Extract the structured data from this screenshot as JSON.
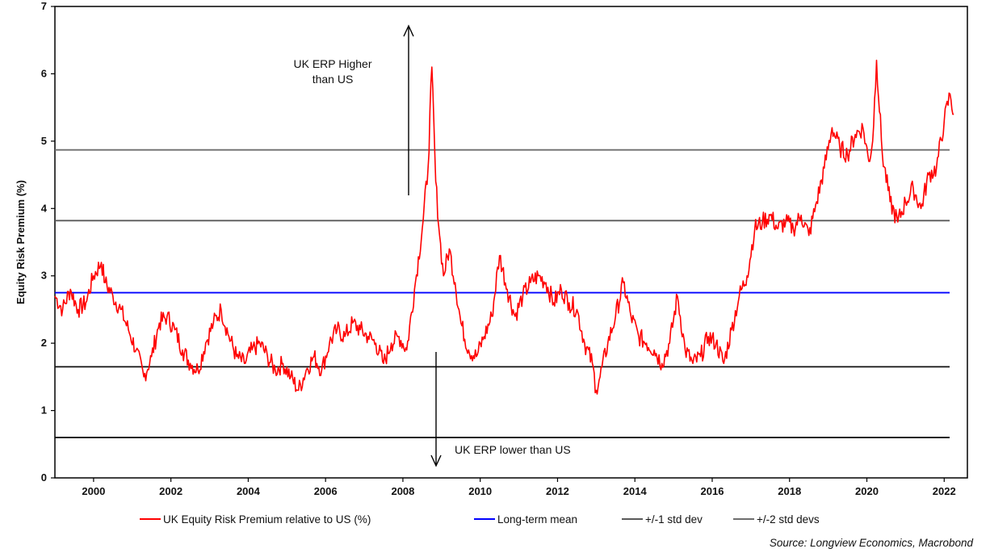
{
  "chart_data": {
    "type": "line",
    "ylabel": "Equity Risk Premium (%)",
    "xlabel": "",
    "xlim": [
      1999.0,
      2022.6
    ],
    "ylim": [
      0,
      7
    ],
    "y_ticks": [
      "0",
      "1",
      "2",
      "3",
      "4",
      "5",
      "6",
      "7"
    ],
    "x_ticks": [
      "2000",
      "2002",
      "2004",
      "2006",
      "2008",
      "2010",
      "2012",
      "2014",
      "2016",
      "2018",
      "2020",
      "2022"
    ],
    "grid": false,
    "legend_position": "bottom",
    "series": [
      {
        "name": "UK Equity Risk Premium relative to US (%)",
        "color": "#ff0000",
        "x": [
          1999.0,
          1999.2,
          1999.4,
          1999.6,
          1999.8,
          2000.0,
          2000.2,
          2000.3,
          2000.5,
          2000.7,
          2000.9,
          2001.1,
          2001.3,
          2001.5,
          2001.7,
          2001.9,
          2002.1,
          2002.3,
          2002.5,
          2002.7,
          2002.9,
          2003.1,
          2003.3,
          2003.5,
          2003.7,
          2003.9,
          2004.1,
          2004.3,
          2004.5,
          2004.7,
          2004.9,
          2005.1,
          2005.3,
          2005.5,
          2005.7,
          2005.9,
          2006.1,
          2006.3,
          2006.5,
          2006.7,
          2006.9,
          2007.1,
          2007.3,
          2007.5,
          2007.7,
          2007.9,
          2008.1,
          2008.3,
          2008.5,
          2008.65,
          2008.75,
          2008.85,
          2008.95,
          2009.05,
          2009.2,
          2009.35,
          2009.5,
          2009.7,
          2009.9,
          2010.1,
          2010.3,
          2010.5,
          2010.7,
          2010.9,
          2011.1,
          2011.3,
          2011.5,
          2011.7,
          2011.9,
          2012.1,
          2012.3,
          2012.5,
          2012.7,
          2012.9,
          2013.0,
          2013.1,
          2013.3,
          2013.5,
          2013.7,
          2013.9,
          2014.1,
          2014.3,
          2014.5,
          2014.7,
          2014.9,
          2015.1,
          2015.3,
          2015.5,
          2015.7,
          2015.9,
          2016.1,
          2016.3,
          2016.5,
          2016.7,
          2016.9,
          2017.1,
          2017.3,
          2017.5,
          2017.7,
          2017.9,
          2018.1,
          2018.3,
          2018.5,
          2018.7,
          2018.9,
          2019.1,
          2019.3,
          2019.5,
          2019.7,
          2019.9,
          2020.05,
          2020.15,
          2020.25,
          2020.4,
          2020.6,
          2020.8,
          2021.0,
          2021.2,
          2021.4,
          2021.6,
          2021.8,
          2022.0,
          2022.15,
          2022.25
        ],
        "values": [
          2.7,
          2.5,
          2.8,
          2.5,
          2.6,
          3.0,
          3.2,
          2.9,
          2.7,
          2.5,
          2.2,
          1.9,
          1.5,
          1.8,
          2.3,
          2.4,
          2.2,
          1.9,
          1.7,
          1.6,
          2.0,
          2.3,
          2.5,
          2.1,
          1.8,
          1.7,
          1.9,
          2.0,
          1.8,
          1.6,
          1.7,
          1.5,
          1.3,
          1.6,
          1.8,
          1.6,
          2.0,
          2.2,
          2.1,
          2.3,
          2.2,
          2.1,
          2.0,
          1.7,
          2.0,
          2.1,
          1.9,
          2.8,
          3.7,
          4.6,
          6.1,
          4.4,
          3.6,
          3.0,
          3.4,
          2.9,
          2.3,
          1.9,
          1.8,
          2.1,
          2.4,
          3.3,
          2.8,
          2.4,
          2.7,
          2.9,
          3.0,
          2.9,
          2.6,
          2.8,
          2.6,
          2.5,
          2.0,
          1.7,
          1.3,
          1.5,
          2.0,
          2.4,
          2.9,
          2.4,
          2.1,
          2.0,
          1.9,
          1.7,
          2.0,
          2.7,
          1.9,
          1.7,
          1.8,
          2.1,
          2.0,
          1.7,
          2.2,
          2.7,
          3.0,
          3.7,
          3.8,
          3.9,
          3.7,
          3.8,
          3.7,
          3.9,
          3.6,
          4.1,
          4.6,
          5.2,
          4.9,
          4.8,
          5.1,
          5.2,
          4.7,
          5.0,
          6.2,
          4.8,
          4.1,
          3.8,
          4.1,
          4.3,
          4.0,
          4.5,
          4.6,
          5.3,
          5.7,
          5.4
        ]
      },
      {
        "name": "Long-term mean",
        "color": "#0000ff",
        "level": 2.75
      },
      {
        "name": "+/-1 std dev",
        "color": "#5a5a5a",
        "levels": [
          3.82,
          1.65
        ]
      },
      {
        "name": "+/-2 std devs",
        "color": "#6e6e6e",
        "levels": [
          4.87,
          0.6
        ]
      }
    ],
    "annotations": {
      "higher_line1": "UK ERP Higher",
      "higher_line2": "than US",
      "lower": "UK ERP lower than US"
    },
    "source": "Source: Longview Economics, Macrobond"
  }
}
